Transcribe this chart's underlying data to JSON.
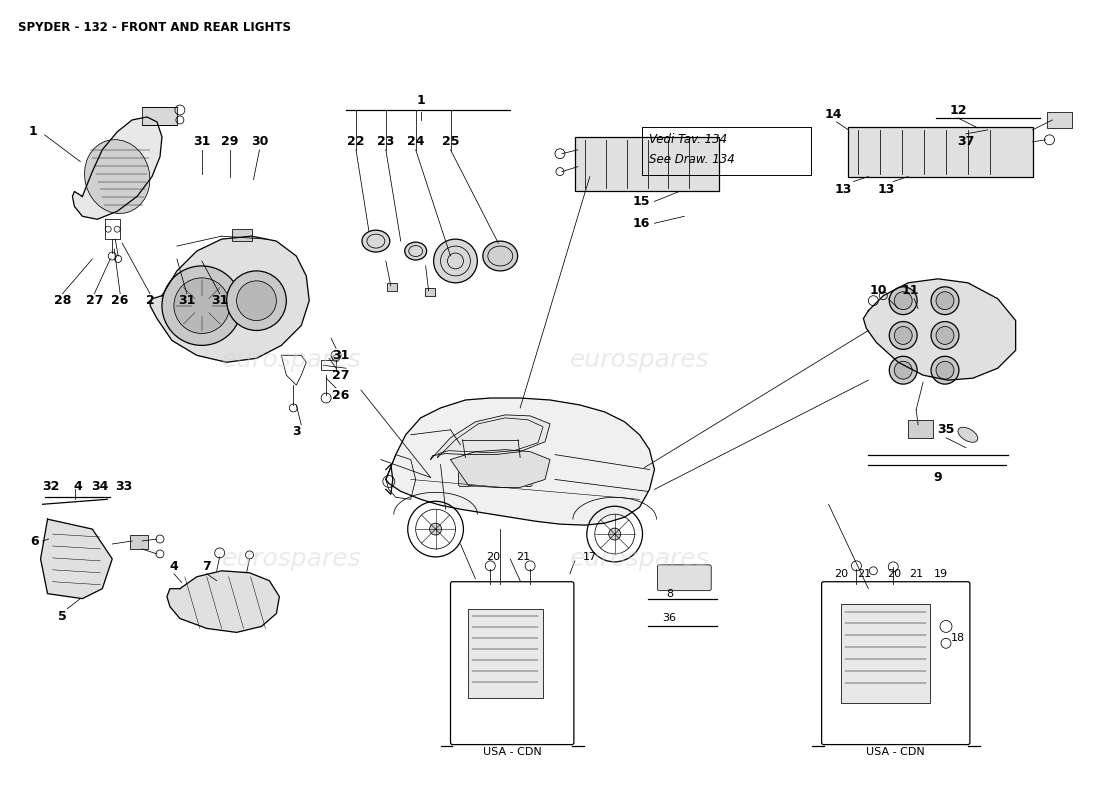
{
  "title": "SPYDER - 132 - FRONT AND REAR LIGHTS",
  "bg_color": "#ffffff",
  "watermark_color": "#cccccc",
  "fig_width": 11.0,
  "fig_height": 8.0,
  "dpi": 100,
  "vedi_text1": "Vedi Tav. 134",
  "vedi_text2": "See Draw. 134",
  "usa_cdn": "USA - CDN",
  "lw_main": 0.9,
  "lw_thin": 0.55,
  "font_label": 9.0,
  "font_small": 8.0,
  "font_title": 8.5
}
